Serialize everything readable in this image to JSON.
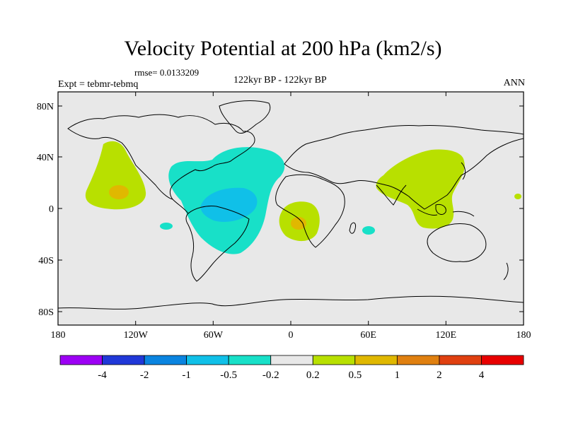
{
  "header": {
    "title": "Velocity Potential at 200 hPa (km2/s)",
    "rmse": "rmse= 0.0133209",
    "experiment": "Expt = tebmr-tebmq",
    "period": "122kyr BP - 122kyr BP",
    "season": "ANN"
  },
  "axes": {
    "lat_labels": [
      "80N",
      "40N",
      "0",
      "40S",
      "80S"
    ],
    "lon_labels": [
      "180",
      "120W",
      "60W",
      "0",
      "60E",
      "120E",
      "180"
    ]
  },
  "colorbar": {
    "colors": [
      "#9D00F5",
      "#2038D8",
      "#0A84E0",
      "#10C0E8",
      "#18E0C8",
      "#E8E8E8",
      "#B8E000",
      "#E0B800",
      "#E08010",
      "#E04010",
      "#E80000"
    ],
    "labels": [
      "-4",
      "-2",
      "-1",
      "-0.5",
      "-0.2",
      "0.2",
      "0.5",
      "1",
      "2",
      "4"
    ]
  },
  "colors": {
    "background": "#E8E8E8",
    "pos_low": "#B8E000",
    "pos_mid": "#E0B800",
    "neg_low": "#18E0C8",
    "neg_mid": "#10C0E8"
  }
}
